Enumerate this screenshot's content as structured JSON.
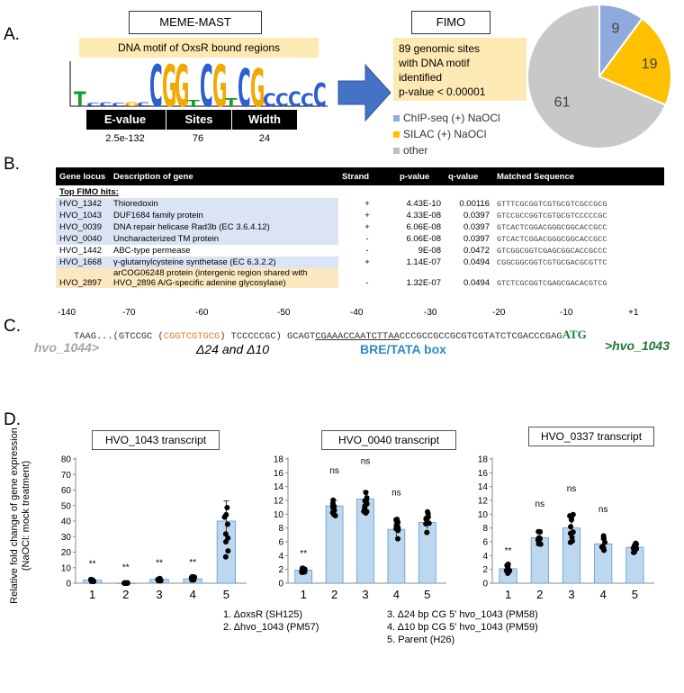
{
  "panels": {
    "a": "A.",
    "b": "B.",
    "c": "C.",
    "d": "D."
  },
  "panel_a": {
    "meme_title": "MEME-MAST",
    "motif_caption": "DNA motif of OxsR bound regions",
    "logo_letters": [
      {
        "l": "T",
        "c": "#1a9a2a",
        "h": 0.35
      },
      {
        "l": "C",
        "c": "#2c5fcf",
        "h": 0.08
      },
      {
        "l": "C",
        "c": "#2c5fcf",
        "h": 0.1
      },
      {
        "l": "C",
        "c": "#2c5fcf",
        "h": 0.08
      },
      {
        "l": "G",
        "c": "#f2a900",
        "h": 0.1
      },
      {
        "l": "C",
        "c": "#2c5fcf",
        "h": 0.1
      },
      {
        "l": "C",
        "c": "#2c5fcf",
        "h": 1.0
      },
      {
        "l": "G",
        "c": "#f2a900",
        "h": 1.0
      },
      {
        "l": "G",
        "c": "#f2a900",
        "h": 1.0
      },
      {
        "l": "T",
        "c": "#1a9a2a",
        "h": 0.15
      },
      {
        "l": "C",
        "c": "#2c5fcf",
        "h": 1.0
      },
      {
        "l": "G",
        "c": "#f2a900",
        "h": 1.0
      },
      {
        "l": "T",
        "c": "#1a9a2a",
        "h": 0.2
      },
      {
        "l": "C",
        "c": "#2c5fcf",
        "h": 0.9
      },
      {
        "l": "G",
        "c": "#f2a900",
        "h": 0.9
      },
      {
        "l": "C",
        "c": "#2c5fcf",
        "h": 0.3
      },
      {
        "l": "C",
        "c": "#2c5fcf",
        "h": 0.3
      },
      {
        "l": "C",
        "c": "#2c5fcf",
        "h": 0.35
      },
      {
        "l": "C",
        "c": "#2c5fcf",
        "h": 0.3
      },
      {
        "l": "C",
        "c": "#2c5fcf",
        "h": 0.55
      }
    ],
    "evalue_header": "E-value",
    "sites_header": "Sites",
    "width_header": "Width",
    "evalue": "2.5e-132",
    "sites": "76",
    "width": "24",
    "fimo_title": "FIMO",
    "fimo_text": [
      "89 genomic sites",
      "with DNA motif",
      "identified",
      "p-value < 0.00001"
    ],
    "legend": [
      {
        "label": "ChIP-seq (+) NaOCl",
        "color": "#8faadc"
      },
      {
        "label": "SILAC (+) NaOCl",
        "color": "#ffc000"
      },
      {
        "label": "other",
        "color": "#bfbfbf"
      }
    ],
    "pie": [
      {
        "value": 9,
        "label": "9",
        "color": "#8faadc"
      },
      {
        "value": 19,
        "label": "19",
        "color": "#ffc000"
      },
      {
        "value": 61,
        "label": "61",
        "color": "#c8c8c8"
      }
    ]
  },
  "panel_b": {
    "headers": [
      "Gene locus",
      "Description of gene",
      "Strand",
      "p-value",
      "q-value",
      "Matched Sequence"
    ],
    "section": "Top FIMO hits:",
    "rows": [
      {
        "locus": "HVO_1342",
        "desc": "Thioredoxin",
        "strand": "+",
        "p": "4.43E-10",
        "q": "0.00116",
        "seq": "GTTTCGCGGTCGTGCGTCGCCGCG",
        "style": "blue"
      },
      {
        "locus": "HVO_1043",
        "desc": "DUF1684 family protein",
        "strand": "+",
        "p": "4.33E-08",
        "q": "0.0397",
        "seq": "GTCCGCCGGTCGTGCGTCCCCCGC",
        "style": "blue"
      },
      {
        "locus": "HVO_0039",
        "desc": "DNA repair helicase Rad3b (EC 3.6.4.12)",
        "strand": "+",
        "p": "6.06E-08",
        "q": "0.0397",
        "seq": "GTCACTCGGACGGGCGGCACCGCC",
        "style": "blue"
      },
      {
        "locus": "HVO_0040",
        "desc": "Uncharacterized TM protein",
        "strand": "-",
        "p": "6.06E-08",
        "q": "0.0397",
        "seq": "GTCACTCGGACGGGCGGCACCGCC",
        "style": "blue"
      },
      {
        "locus": "HVO_1442",
        "desc": "ABC-type permease",
        "strand": "-",
        "p": "9E-08",
        "q": "0.0472",
        "seq": "GTCGGCGGTCGAGCGGCACCGCCC",
        "style": "white"
      },
      {
        "locus": "HVO_1668",
        "desc": "γ-glutamylcysteine synthetase (EC 6.3.2.2)",
        "strand": "+",
        "p": "1.14E-07",
        "q": "0.0494",
        "seq": "CGGCGGCGGTCGTGCGACGCGTTC",
        "style": "blue"
      }
    ],
    "last_row": {
      "locus": "HVO_2897",
      "desc1": "arCOG06248 protein (intergenic region shared with",
      "desc2": "HVO_2896 A/G-specific adenine glycosylase)",
      "strand": "-",
      "p": "1.32E-07",
      "q": "0.0494",
      "seq": "GTCTCGCGGTCGAGCGACACGTCG"
    }
  },
  "panel_c": {
    "positions": [
      "-140",
      "-70",
      "-60",
      "-50",
      "-40",
      "-30",
      "-20",
      "-10",
      "+1"
    ],
    "seq_start": "TAAG...(GTCCGC (",
    "seq_cg1": "CG",
    "seq_mid1": "GT",
    "seq_cg2": "CG",
    "seq_mid2": "T",
    "seq_cg3": "GCG",
    "seq_after": ") TCCCCCGC) GCAGT",
    "seq_bre": "CGAAACCAATCTTAA",
    "seq_end": "CCCGCCGCCGCGTCGTATCTCGACCCGAG",
    "atg": "ATG",
    "hvo_1044": "hvo_1044>",
    "deletions": "Δ24 and Δ10",
    "bre_label": "BRE/TATA box",
    "hvo_1043": ">hvo_1043"
  },
  "panel_d": {
    "ylabel_line1": "Relative fold change of gene expression",
    "ylabel_line2": "(NaOCl: mock treatment)",
    "legend_col1": [
      "1.  ΔoxsR (SH125)",
      "2.  Δhvo_1043 (PM57)"
    ],
    "legend_col2": [
      "3.  Δ24 bp CG 5' hvo_1043 (PM58)",
      "4.  Δ10 bp CG 5' hvo_1043 (PM59)",
      "5.   Parent (H26)"
    ]
  },
  "chart_data": [
    {
      "type": "bar",
      "title": "HVO_1043 transcript",
      "categories": [
        "1",
        "2",
        "3",
        "4",
        "5"
      ],
      "values": [
        2.0,
        0.1,
        2.5,
        2.8,
        40.0
      ],
      "errors": [
        0.6,
        0.1,
        0.6,
        0.8,
        13
      ],
      "annotations": [
        "**",
        "**",
        "**",
        "**",
        ""
      ],
      "ylim": [
        0,
        80
      ],
      "yticks": [
        0,
        10,
        20,
        30,
        40,
        50,
        60,
        70,
        80
      ]
    },
    {
      "type": "bar",
      "title": "HVO_0040 transcript",
      "categories": [
        "1",
        "2",
        "3",
        "4",
        "5"
      ],
      "values": [
        1.9,
        11.2,
        12.2,
        7.8,
        8.8
      ],
      "errors": [
        0.2,
        0.8,
        1.2,
        1.0,
        0.9
      ],
      "annotations": [
        "**",
        "ns",
        "ns",
        "ns",
        ""
      ],
      "ylim": [
        0,
        18
      ],
      "yticks": [
        0,
        2,
        4,
        6,
        8,
        10,
        12,
        14,
        16,
        18
      ]
    },
    {
      "type": "bar",
      "title": "HVO_0337 transcript",
      "categories": [
        "1",
        "2",
        "3",
        "4",
        "5"
      ],
      "values": [
        2.1,
        6.6,
        8.0,
        5.7,
        5.2
      ],
      "errors": [
        0.4,
        0.6,
        1.4,
        0.7,
        0.5
      ],
      "annotations": [
        "**",
        "ns",
        "ns",
        "ns",
        ""
      ],
      "ylim": [
        0,
        18
      ],
      "yticks": [
        0,
        2,
        4,
        6,
        8,
        10,
        12,
        14,
        16,
        18
      ]
    }
  ]
}
